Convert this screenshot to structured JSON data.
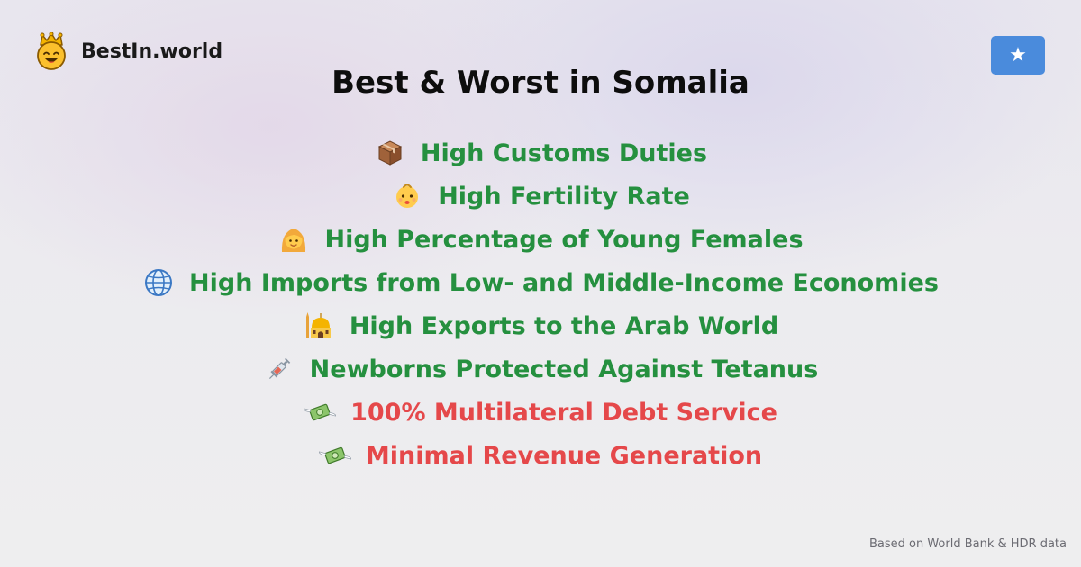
{
  "brand": {
    "name": "BestIn.world",
    "logo_icon": "crowned-smiley-icon"
  },
  "flag_button": {
    "symbol": "★",
    "icon": "somalia-flag-icon",
    "background": "#4a8bdc"
  },
  "title": "Best & Worst in Somalia",
  "colors": {
    "best": "#25903f",
    "worst": "#e5484a"
  },
  "items": [
    {
      "icon": "package-icon",
      "label": "High Customs Duties",
      "kind": "best"
    },
    {
      "icon": "baby-icon",
      "label": "High Fertility Rate",
      "kind": "best"
    },
    {
      "icon": "young-woman-icon",
      "label": "High Percentage of Young Females",
      "kind": "best"
    },
    {
      "icon": "globe-icon",
      "label": "High Imports from Low- and Middle-Income Economies",
      "kind": "best"
    },
    {
      "icon": "mosque-icon",
      "label": "High Exports to the Arab World",
      "kind": "best"
    },
    {
      "icon": "syringe-icon",
      "label": "Newborns Protected Against Tetanus",
      "kind": "best"
    },
    {
      "icon": "money-with-wings-icon",
      "label": "100% Multilateral Debt Service",
      "kind": "worst"
    },
    {
      "icon": "money-with-wings-icon",
      "label": "Minimal Revenue Generation",
      "kind": "worst"
    }
  ],
  "footer": {
    "source": "Based on World Bank & HDR data"
  }
}
